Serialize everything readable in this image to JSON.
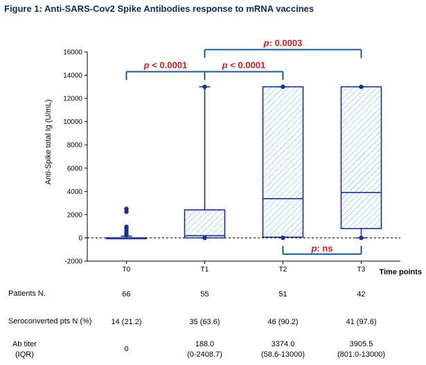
{
  "title": "Figure 1: Anti-SARS-Cov2 Spike Antibodies response to mRNA vaccines",
  "chart_data": {
    "type": "box",
    "ylabel": "Anti-Spike total Ig (U/mL)",
    "xlabel": "Time points",
    "ylim": [
      -2000,
      16000
    ],
    "yticks": [
      -2000,
      0,
      2000,
      4000,
      6000,
      8000,
      10000,
      12000,
      14000,
      16000
    ],
    "categories": [
      "T0",
      "T1",
      "T2",
      "T3"
    ],
    "boxes": [
      {
        "label": "T0",
        "whisker_low": 0,
        "q1": 0,
        "median": 0,
        "q3": 0,
        "whisker_high": 150,
        "outliers": [
          2500,
          2250,
          950,
          800,
          600,
          400,
          250
        ]
      },
      {
        "label": "T1",
        "whisker_low": 0,
        "q1": 0,
        "median": 188,
        "q3": 2408.7,
        "whisker_high": 13000,
        "outliers": [
          0,
          13000
        ]
      },
      {
        "label": "T2",
        "whisker_low": 58.6,
        "q1": 58.6,
        "median": 3374,
        "q3": 13000,
        "whisker_high": 13000,
        "outliers": [
          0,
          13000
        ]
      },
      {
        "label": "T3",
        "whisker_low": 0,
        "q1": 801,
        "median": 3905.5,
        "q3": 13000,
        "whisker_high": 13000,
        "outliers": [
          0,
          13000
        ]
      }
    ],
    "comparisons": [
      {
        "from": "T0",
        "to": "T1",
        "label": "p < 0.0001",
        "p_prefix": "p",
        "p_rest": " < 0.0001",
        "level": 14300,
        "side": "top"
      },
      {
        "from": "T1",
        "to": "T2",
        "label": "p < 0.0001",
        "p_prefix": "p",
        "p_rest": " < 0.0001",
        "level": 14300,
        "side": "top"
      },
      {
        "from": "T1",
        "to": "T3",
        "label": "p: 0.0003",
        "p_prefix": "p",
        "p_rest": ": 0.0003",
        "level": 16200,
        "side": "top"
      },
      {
        "from": "T2",
        "to": "T3",
        "label": "p: ns",
        "p_prefix": "p",
        "p_rest": ": ns",
        "level": -1400,
        "side": "bottom"
      }
    ]
  },
  "table": {
    "rows": [
      {
        "label": "Patients N.",
        "values": [
          "66",
          "55",
          "51",
          "42"
        ]
      },
      {
        "label": "Seroconverted pts N (%)",
        "values": [
          "14 (21.2)",
          "35 (63.6)",
          "46 (90.2)",
          "41 (97.6)"
        ]
      },
      {
        "label": "Ab titer",
        "label2": "(IQR)",
        "values": [
          [
            "0"
          ],
          [
            "188.0",
            "(0-2408.7)"
          ],
          [
            "3374.0",
            "(58.6-13000)"
          ],
          [
            "3905.5",
            "(801.0-13000)"
          ]
        ]
      }
    ]
  },
  "colors": {
    "box_stroke": "#1c2f8a",
    "hatch": "#5fb3c9",
    "bracket": "#1f5a96",
    "pvalue": "#d11b1b",
    "title": "#0b2a5a"
  }
}
